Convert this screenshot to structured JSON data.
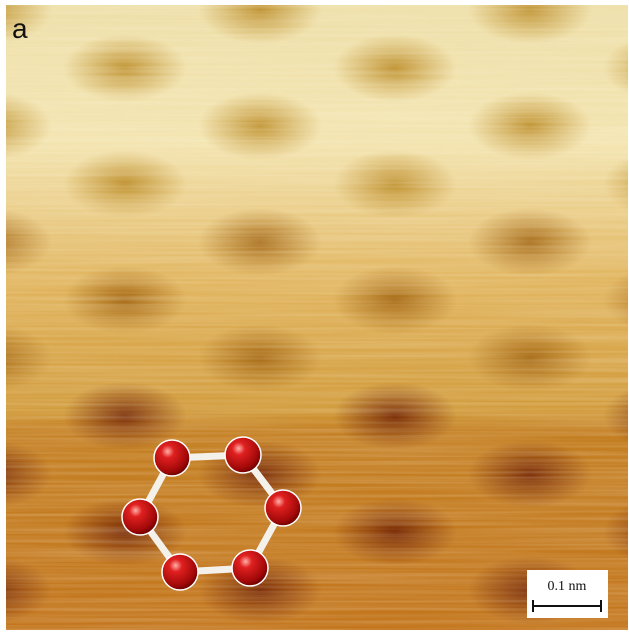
{
  "panel_label": "a",
  "scale_bar": {
    "label": "0.1 nm"
  }
}
